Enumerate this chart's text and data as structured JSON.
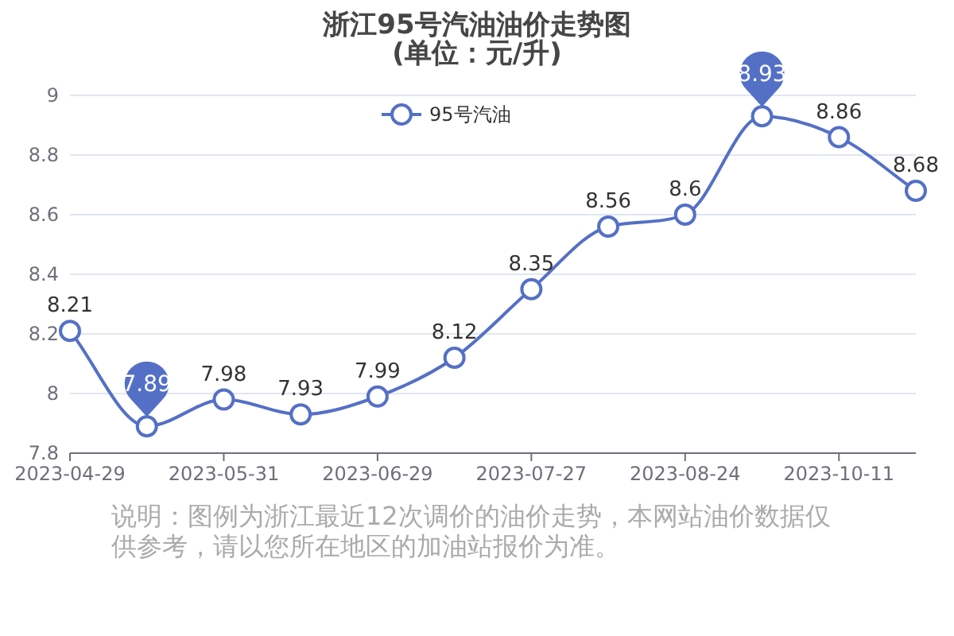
{
  "chart_data": {
    "type": "line",
    "title": "浙江95号汽油油价走势图",
    "subtitle": "(单位：元/升)",
    "categories": [
      "2023-04-29",
      null,
      "2023-05-31",
      null,
      "2023-06-29",
      null,
      "2023-07-27",
      null,
      "2023-08-24",
      null,
      "2023-10-11",
      null
    ],
    "series": [
      {
        "name": "95号汽油",
        "color": "#5470c6",
        "values": [
          8.21,
          7.89,
          7.98,
          7.93,
          7.99,
          8.12,
          8.35,
          8.56,
          8.6,
          8.93,
          8.86,
          8.68
        ]
      }
    ],
    "ylim": [
      7.8,
      9
    ],
    "yticks": [
      7.8,
      8,
      8.2,
      8.4,
      8.6,
      8.8,
      9
    ],
    "grid": "y",
    "legend": "top",
    "marker": "circle",
    "line_style": "solid",
    "data_labels": true,
    "annotations": [
      "说明：图例为浙江最近12次调价的油价走势，本网站油价数据仅供参考，请以您所在地区的加油站报价为准。"
    ]
  }
}
